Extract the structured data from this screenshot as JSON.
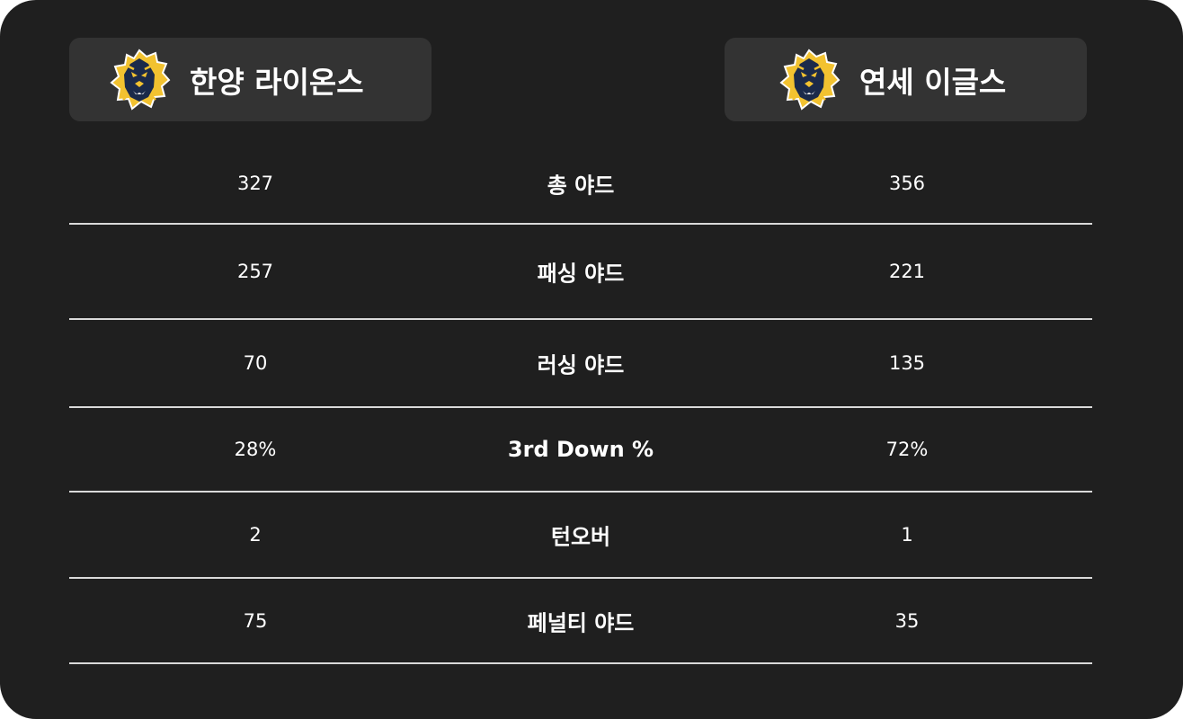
{
  "home_team": {
    "name": "한양 라이온스",
    "logo_icon": "lion-head-icon"
  },
  "away_team": {
    "name": "연세 이글스",
    "logo_icon": "lion-head-icon"
  },
  "stats": [
    {
      "label": "총 야드",
      "home": "327",
      "away": "356"
    },
    {
      "label": "패싱 야드",
      "home": "257",
      "away": "221"
    },
    {
      "label": "러싱 야드",
      "home": "70",
      "away": "135"
    },
    {
      "label": "3rd Down %",
      "home": "28%",
      "away": "72%"
    },
    {
      "label": "턴오버",
      "home": "2",
      "away": "1"
    },
    {
      "label": "페널티 야드",
      "home": "75",
      "away": "35"
    }
  ],
  "colors": {
    "background": "#1f1f1f",
    "team_box": "#333333",
    "divider": "#d9d9d9",
    "text": "#ffffff",
    "logo_navy": "#1b2a4a",
    "logo_gold": "#f2c230"
  }
}
